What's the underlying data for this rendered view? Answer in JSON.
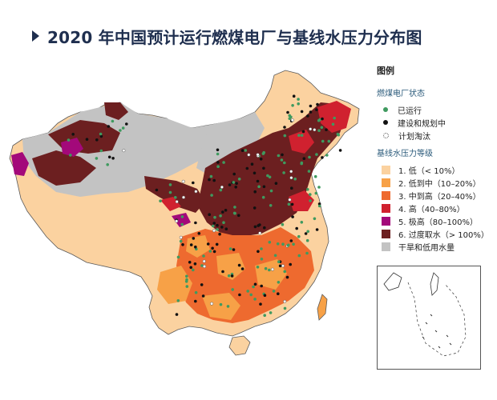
{
  "title": "2020 年中国预计运行燃煤电厂与基线水压力分布图",
  "legend": {
    "heading": "图例",
    "plants_title": "燃煤电厂状态",
    "plants": [
      {
        "label": "已运行",
        "color": "#3f9a5f"
      },
      {
        "label": "建设和规划中",
        "color": "#111111"
      },
      {
        "label": "计划淘汰",
        "color": "#ffffff"
      }
    ],
    "stress_title": "基线水压力等级",
    "stress": [
      {
        "label": "1. 低（< 10%）",
        "color": "#fbd2a0"
      },
      {
        "label": "2. 低到中（10–20%）",
        "color": "#f7a147"
      },
      {
        "label": "3. 中到高（20–40%）",
        "color": "#ee6a2f"
      },
      {
        "label": "4. 高（40–80%）",
        "color": "#d0212f"
      },
      {
        "label": "5. 极高（80–100%）",
        "color": "#a3097a"
      },
      {
        "label": "6. 过度取水（> 100%）",
        "color": "#6c1f20"
      },
      {
        "label": "干旱和低用水量",
        "color": "#c3c3c3"
      }
    ]
  }
}
